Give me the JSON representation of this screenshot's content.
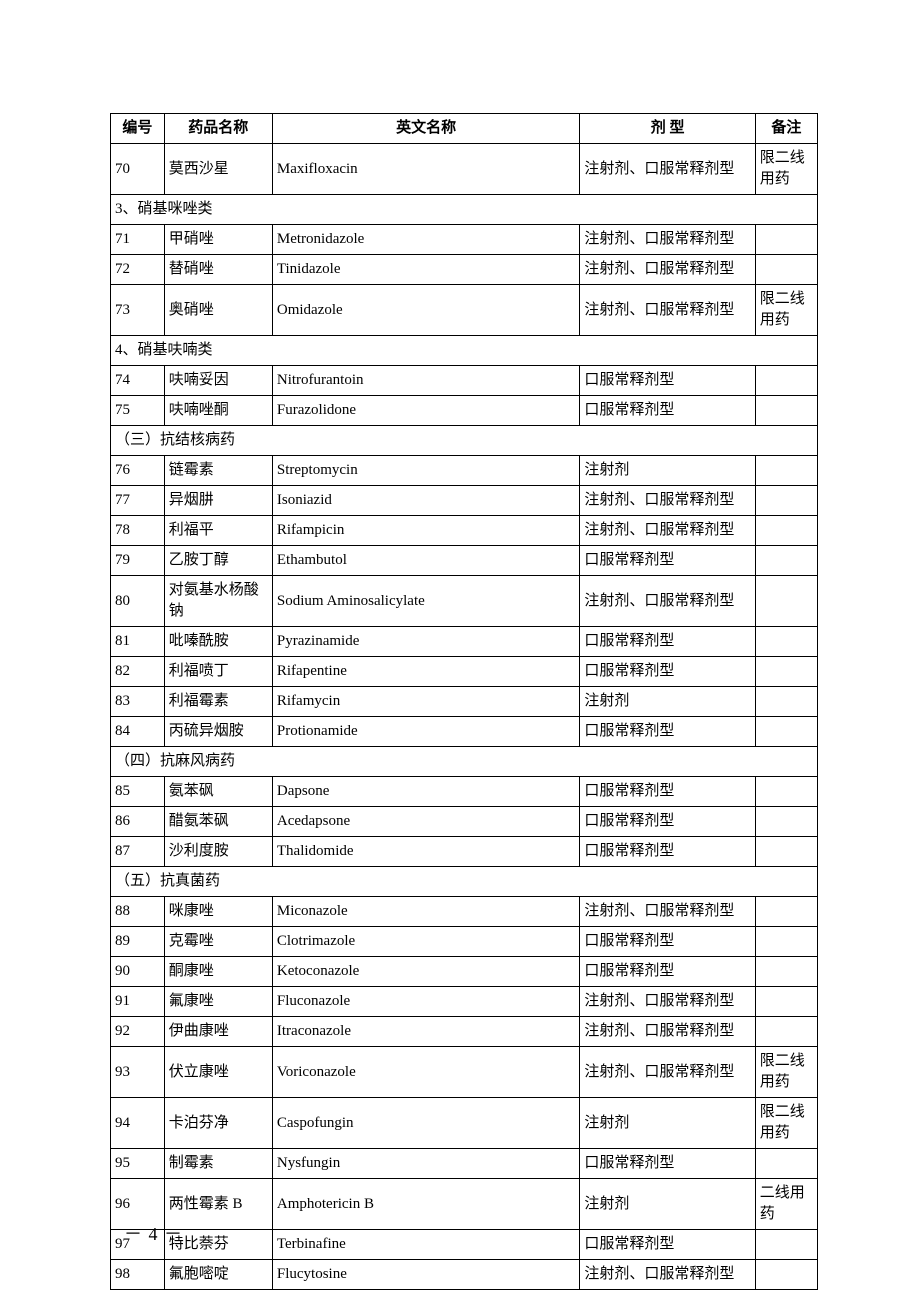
{
  "columns": {
    "c1": "编号",
    "c2": "药品名称",
    "c3": "英文名称",
    "c4": "剂 型",
    "c5": "备注"
  },
  "page_number": "－ 4 －",
  "rows": [
    {
      "type": "data",
      "id": "70",
      "name": "莫西沙星",
      "en": "Maxifloxacin",
      "form": "注射剂、口服常释剂型",
      "note": "限二线用药"
    },
    {
      "type": "section",
      "label": "3、硝基咪唑类"
    },
    {
      "type": "data",
      "id": "71",
      "name": "甲硝唑",
      "en": "Metronidazole",
      "form": "注射剂、口服常释剂型",
      "note": ""
    },
    {
      "type": "data",
      "id": "72",
      "name": "替硝唑",
      "en": "Tinidazole",
      "form": "注射剂、口服常释剂型",
      "note": ""
    },
    {
      "type": "data",
      "id": "73",
      "name": "奥硝唑",
      "en": "Omidazole",
      "form": "注射剂、口服常释剂型",
      "note": "限二线用药"
    },
    {
      "type": "section",
      "label": "4、硝基呋喃类"
    },
    {
      "type": "data",
      "id": "74",
      "name": "呋喃妥因",
      "en": "Nitrofurantoin",
      "form": "口服常释剂型",
      "note": ""
    },
    {
      "type": "data",
      "id": "75",
      "name": "呋喃唑酮",
      "en": "Furazolidone",
      "form": "口服常释剂型",
      "note": ""
    },
    {
      "type": "section",
      "label": "（三）抗结核病药"
    },
    {
      "type": "data",
      "id": "76",
      "name": "链霉素",
      "en": "Streptomycin",
      "form": "注射剂",
      "note": ""
    },
    {
      "type": "data",
      "id": "77",
      "name": "异烟肼",
      "en": "Isoniazid",
      "form": "注射剂、口服常释剂型",
      "note": ""
    },
    {
      "type": "data",
      "id": "78",
      "name": "利福平",
      "en": "Rifampicin",
      "form": "注射剂、口服常释剂型",
      "note": ""
    },
    {
      "type": "data",
      "id": "79",
      "name": "乙胺丁醇",
      "en": "Ethambutol",
      "form": "口服常释剂型",
      "note": ""
    },
    {
      "type": "data",
      "id": "80",
      "name": "对氨基水杨酸钠",
      "en": "Sodium Aminosalicylate",
      "form": "注射剂、口服常释剂型",
      "note": ""
    },
    {
      "type": "data",
      "id": "81",
      "name": "吡嗪酰胺",
      "en": "Pyrazinamide",
      "form": "口服常释剂型",
      "note": ""
    },
    {
      "type": "data",
      "id": "82",
      "name": "利福喷丁",
      "en": "Rifapentine",
      "form": "口服常释剂型",
      "note": ""
    },
    {
      "type": "data",
      "id": "83",
      "name": "利福霉素",
      "en": "Rifamycin",
      "form": "注射剂",
      "note": ""
    },
    {
      "type": "data",
      "id": "84",
      "name": "丙硫异烟胺",
      "en": "Protionamide",
      "form": "口服常释剂型",
      "note": ""
    },
    {
      "type": "section",
      "label": "（四）抗麻风病药"
    },
    {
      "type": "data",
      "id": "85",
      "name": "氨苯砜",
      "en": "Dapsone",
      "form": "口服常释剂型",
      "note": ""
    },
    {
      "type": "data",
      "id": "86",
      "name": "醋氨苯砜",
      "en": "Acedapsone",
      "form": "口服常释剂型",
      "note": ""
    },
    {
      "type": "data",
      "id": "87",
      "name": "沙利度胺",
      "en": "Thalidomide",
      "form": "口服常释剂型",
      "note": ""
    },
    {
      "type": "section",
      "label": "（五）抗真菌药"
    },
    {
      "type": "data",
      "id": "88",
      "name": "咪康唑",
      "en": "Miconazole",
      "form": "注射剂、口服常释剂型",
      "note": ""
    },
    {
      "type": "data",
      "id": "89",
      "name": "克霉唑",
      "en": "Clotrimazole",
      "form": "口服常释剂型",
      "note": ""
    },
    {
      "type": "data",
      "id": "90",
      "name": "酮康唑",
      "en": "Ketoconazole",
      "form": "口服常释剂型",
      "note": ""
    },
    {
      "type": "data",
      "id": "91",
      "name": "氟康唑",
      "en": "Fluconazole",
      "form": "注射剂、口服常释剂型",
      "note": ""
    },
    {
      "type": "data",
      "id": "92",
      "name": "伊曲康唑",
      "en": "Itraconazole",
      "form": "注射剂、口服常释剂型",
      "note": ""
    },
    {
      "type": "data",
      "id": "93",
      "name": "伏立康唑",
      "en": "Voriconazole",
      "form": "注射剂、口服常释剂型",
      "note": "限二线用药"
    },
    {
      "type": "data",
      "id": "94",
      "name": "卡泊芬净",
      "en": "Caspofungin",
      "form": "注射剂",
      "note": "限二线用药"
    },
    {
      "type": "data",
      "id": "95",
      "name": "制霉素",
      "en": "Nysfungin",
      "form": "口服常释剂型",
      "note": ""
    },
    {
      "type": "data",
      "id": "96",
      "name": "两性霉素 B",
      "en": "Amphotericin B",
      "form": "注射剂",
      "note": "二线用药"
    },
    {
      "type": "data",
      "id": "97",
      "name": "特比萘芬",
      "en": "Terbinafine",
      "form": "口服常释剂型",
      "note": ""
    },
    {
      "type": "data",
      "id": "98",
      "name": "氟胞嘧啶",
      "en": "Flucytosine",
      "form": "注射剂、口服常释剂型",
      "note": ""
    }
  ]
}
